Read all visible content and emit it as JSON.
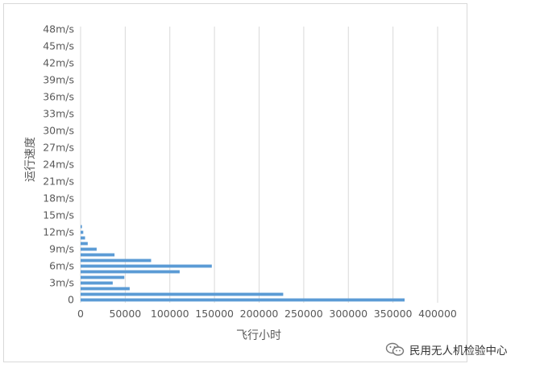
{
  "chart_data": {
    "type": "bar",
    "orientation": "horizontal",
    "title": "",
    "xlabel": "飞行小时",
    "ylabel": "运行速度",
    "xlim": [
      0,
      400000
    ],
    "x_ticks": [
      "0",
      "50000",
      "100000",
      "150000",
      "200000",
      "250000",
      "300000",
      "350000",
      "400000"
    ],
    "y_ticks": [
      "0",
      "3m/s",
      "6m/s",
      "9m/s",
      "12m/s",
      "15m/s",
      "18m/s",
      "21m/s",
      "24m/s",
      "27m/s",
      "30m/s",
      "33m/s",
      "36m/s",
      "39m/s",
      "42m/s",
      "45m/s",
      "48m/s"
    ],
    "categories": [
      "0",
      "1",
      "2",
      "3",
      "4",
      "5",
      "6",
      "7",
      "8",
      "9",
      "10",
      "11",
      "12",
      "13",
      "14",
      "15",
      "16",
      "17",
      "18",
      "19",
      "20",
      "21",
      "22",
      "23",
      "24",
      "25",
      "26",
      "27",
      "28",
      "29",
      "30",
      "31",
      "32",
      "33",
      "34",
      "35",
      "36",
      "37",
      "38",
      "39",
      "40",
      "41",
      "42",
      "43",
      "44",
      "45",
      "46",
      "47",
      "48"
    ],
    "values": [
      363000,
      227000,
      55000,
      36000,
      49000,
      111000,
      147000,
      79000,
      38000,
      18000,
      8000,
      5000,
      3000,
      1500,
      0,
      0,
      0,
      0,
      0,
      0,
      0,
      0,
      0,
      0,
      0,
      0,
      0,
      0,
      0,
      0,
      0,
      0,
      0,
      0,
      0,
      0,
      0,
      0,
      0,
      0,
      0,
      0,
      0,
      0,
      0,
      0,
      0,
      0,
      0
    ],
    "bar_color": "#5b9bd5",
    "grid": "vertical",
    "legend": "none"
  },
  "watermark": {
    "text": "民用无人机检验中心",
    "icon": "wechat-icon"
  }
}
